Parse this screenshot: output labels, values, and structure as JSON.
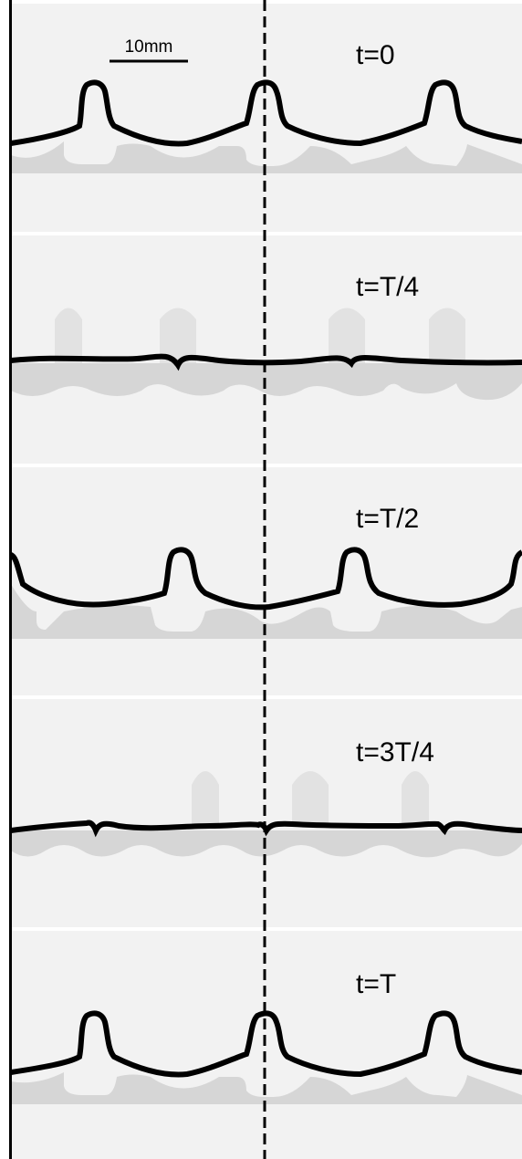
{
  "scale_bar": {
    "label": "10mm"
  },
  "panels": [
    {
      "label": "t=0",
      "peaks": "left"
    },
    {
      "label": "t=T/4",
      "peaks": "flat-left"
    },
    {
      "label": "t=T/2",
      "peaks": "right"
    },
    {
      "label": "t=3T/4",
      "peaks": "flat-right"
    },
    {
      "label": "t=T",
      "peaks": "left"
    }
  ],
  "colors": {
    "background": "#f2f2f2",
    "separator": "#ffffff",
    "interface": "#000000",
    "shadow": "#d6d6d6",
    "border": "#000000"
  }
}
